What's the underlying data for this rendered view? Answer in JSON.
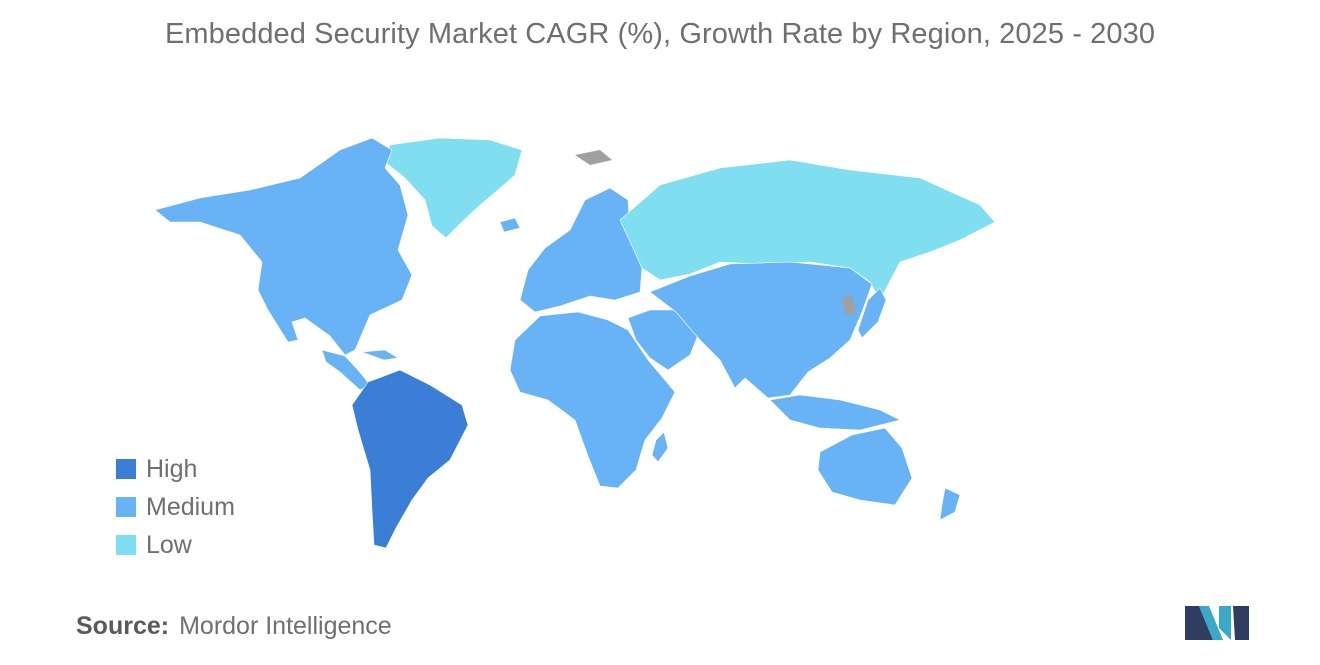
{
  "title": "Embedded Security Market CAGR (%), Growth Rate by Region, 2025 - 2030",
  "legend": [
    {
      "label": "High",
      "color": "#3a7ed6"
    },
    {
      "label": "Medium",
      "color": "#67b3f5"
    },
    {
      "label": "Low",
      "color": "#7fdef0"
    }
  ],
  "no_data_color": "#a0a0a0",
  "regions": [
    {
      "name": "North America",
      "level": "Medium"
    },
    {
      "name": "South America",
      "level": "High"
    },
    {
      "name": "Europe",
      "level": "Medium"
    },
    {
      "name": "Africa",
      "level": "Medium"
    },
    {
      "name": "Middle East",
      "level": "Medium"
    },
    {
      "name": "Asia",
      "level": "Medium"
    },
    {
      "name": "Australia and New Zealand",
      "level": "Medium"
    },
    {
      "name": "Russia",
      "level": "Low"
    },
    {
      "name": "Greenland",
      "level": "Low"
    }
  ],
  "source": {
    "label": "Source:",
    "value": "Mordor Intelligence"
  }
}
